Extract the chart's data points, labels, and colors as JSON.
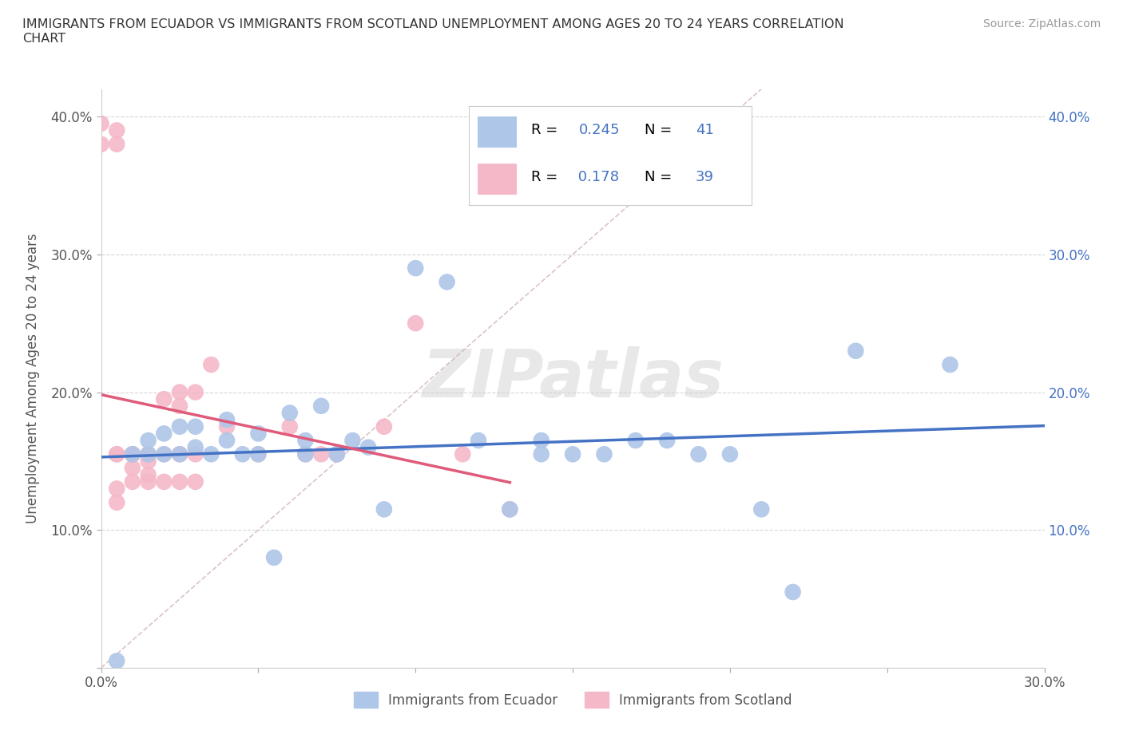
{
  "title": "IMMIGRANTS FROM ECUADOR VS IMMIGRANTS FROM SCOTLAND UNEMPLOYMENT AMONG AGES 20 TO 24 YEARS CORRELATION\nCHART",
  "source": "Source: ZipAtlas.com",
  "ylabel": "Unemployment Among Ages 20 to 24 years",
  "xlim": [
    0.0,
    0.3
  ],
  "ylim": [
    0.0,
    0.42
  ],
  "xticks": [
    0.0,
    0.05,
    0.1,
    0.15,
    0.2,
    0.25,
    0.3
  ],
  "yticks": [
    0.0,
    0.1,
    0.2,
    0.3,
    0.4
  ],
  "ytick_labels": [
    "",
    "10.0%",
    "20.0%",
    "30.0%",
    "40.0%"
  ],
  "xtick_labels": [
    "0.0%",
    "",
    "",
    "",
    "",
    "",
    "30.0%"
  ],
  "legend_top_R1": "0.245",
  "legend_top_N1": "41",
  "legend_top_R2": "0.178",
  "legend_top_N2": "39",
  "ecuador_color": "#aec6e8",
  "scotland_color": "#f4b8c8",
  "ecuador_line_color": "#4472c4",
  "scotland_line_color": "#e05a7a",
  "ecuador_x": [
    0.005,
    0.01,
    0.015,
    0.015,
    0.02,
    0.02,
    0.025,
    0.025,
    0.03,
    0.03,
    0.035,
    0.04,
    0.04,
    0.045,
    0.05,
    0.05,
    0.055,
    0.06,
    0.065,
    0.065,
    0.07,
    0.075,
    0.08,
    0.085,
    0.09,
    0.1,
    0.11,
    0.12,
    0.13,
    0.14,
    0.14,
    0.15,
    0.16,
    0.17,
    0.18,
    0.19,
    0.2,
    0.21,
    0.22,
    0.24,
    0.27
  ],
  "ecuador_y": [
    0.005,
    0.155,
    0.155,
    0.165,
    0.155,
    0.17,
    0.155,
    0.175,
    0.16,
    0.175,
    0.155,
    0.165,
    0.18,
    0.155,
    0.155,
    0.17,
    0.08,
    0.185,
    0.155,
    0.165,
    0.19,
    0.155,
    0.165,
    0.16,
    0.115,
    0.29,
    0.28,
    0.165,
    0.115,
    0.155,
    0.165,
    0.155,
    0.155,
    0.165,
    0.165,
    0.155,
    0.155,
    0.115,
    0.055,
    0.23,
    0.22
  ],
  "scotland_x": [
    0.0,
    0.0,
    0.005,
    0.005,
    0.005,
    0.005,
    0.005,
    0.005,
    0.01,
    0.01,
    0.01,
    0.01,
    0.01,
    0.015,
    0.015,
    0.015,
    0.015,
    0.015,
    0.02,
    0.02,
    0.02,
    0.025,
    0.025,
    0.025,
    0.025,
    0.03,
    0.03,
    0.03,
    0.035,
    0.04,
    0.05,
    0.06,
    0.065,
    0.07,
    0.075,
    0.09,
    0.1,
    0.115,
    0.13
  ],
  "scotland_y": [
    0.395,
    0.38,
    0.38,
    0.39,
    0.155,
    0.155,
    0.13,
    0.12,
    0.155,
    0.155,
    0.155,
    0.145,
    0.135,
    0.155,
    0.15,
    0.155,
    0.14,
    0.135,
    0.195,
    0.155,
    0.135,
    0.2,
    0.19,
    0.155,
    0.135,
    0.2,
    0.155,
    0.135,
    0.22,
    0.175,
    0.155,
    0.175,
    0.155,
    0.155,
    0.155,
    0.175,
    0.25,
    0.155,
    0.115
  ]
}
